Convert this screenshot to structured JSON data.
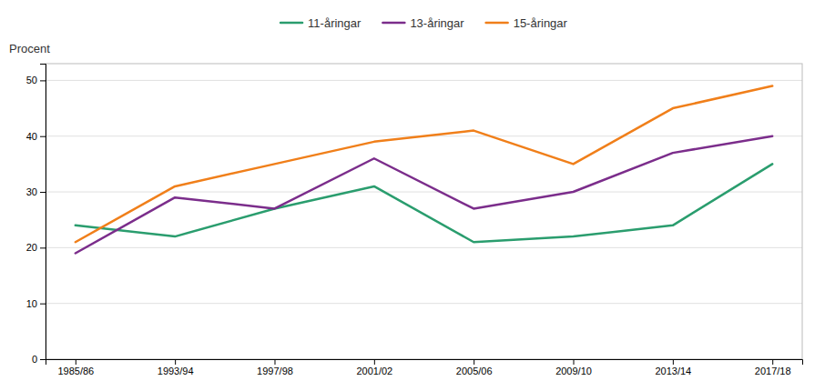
{
  "chart_data": {
    "type": "line",
    "y_label": "Procent",
    "categories": [
      "1985/86",
      "1993/94",
      "1997/98",
      "2001/02",
      "2005/06",
      "2009/10",
      "2013/14",
      "2017/18"
    ],
    "series": [
      {
        "name": "11-åringar",
        "color": "#2a9d6e",
        "values": [
          24,
          22,
          27,
          31,
          21,
          22,
          24,
          35
        ]
      },
      {
        "name": "13-åringar",
        "color": "#7b2d8b",
        "values": [
          19,
          29,
          27,
          36,
          27,
          30,
          37,
          40
        ]
      },
      {
        "name": "15-åringar",
        "color": "#f07f1a",
        "values": [
          21,
          31,
          35,
          39,
          41,
          35,
          45,
          49
        ]
      }
    ],
    "ylim": [
      0,
      53
    ],
    "yticks": [
      0,
      10,
      20,
      30,
      40,
      50
    ],
    "grid": true,
    "legend": "top"
  }
}
